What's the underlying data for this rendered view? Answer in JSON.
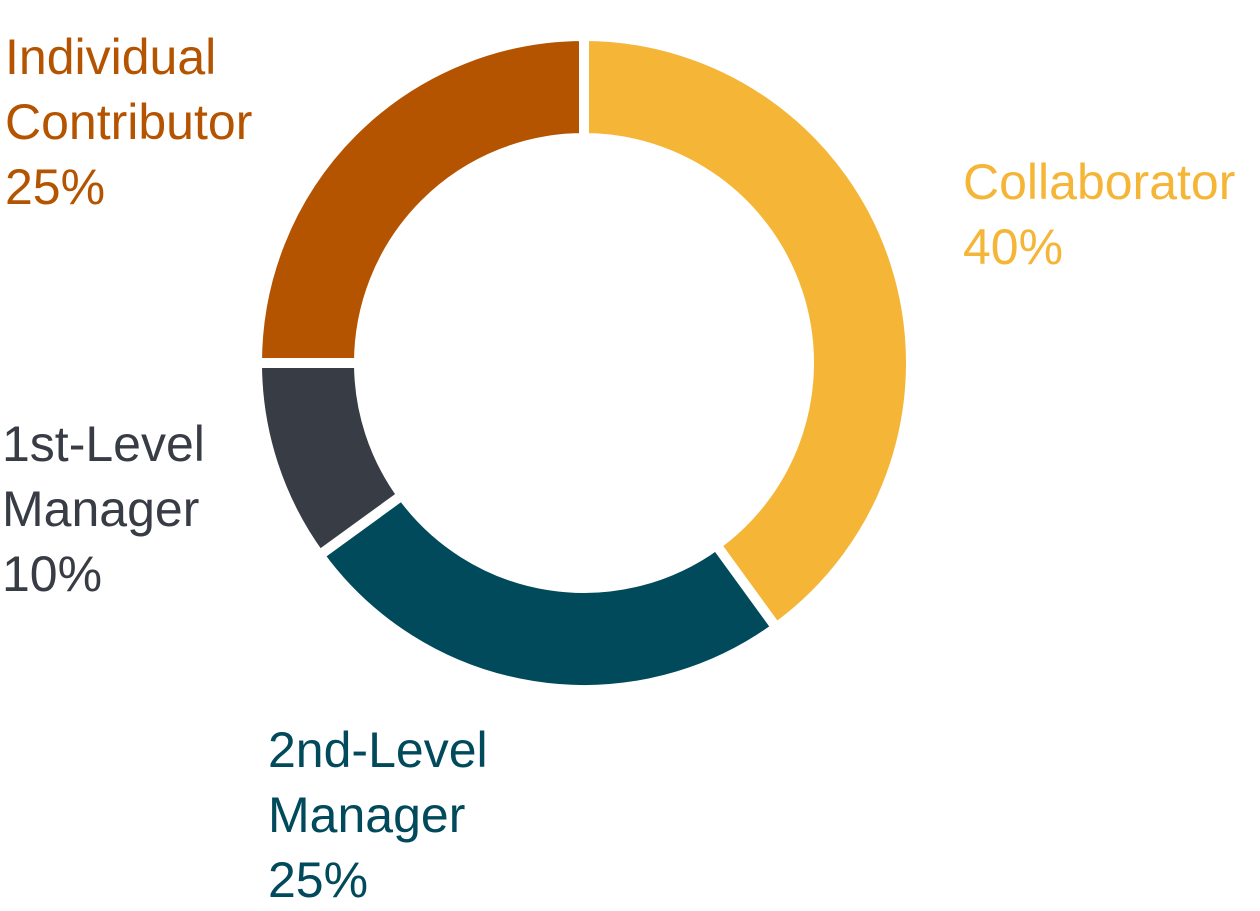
{
  "chart_data": {
    "type": "donut",
    "categories": [
      "Collaborator",
      "2nd-Level Manager",
      "1st-Level Manager",
      "Individual Contributor"
    ],
    "values": [
      40,
      25,
      10,
      25
    ],
    "value_labels": [
      "40%",
      "25%",
      "10%",
      "25%"
    ],
    "colors": [
      "#f5b638",
      "#004a5c",
      "#383c45",
      "#b55400"
    ]
  }
}
